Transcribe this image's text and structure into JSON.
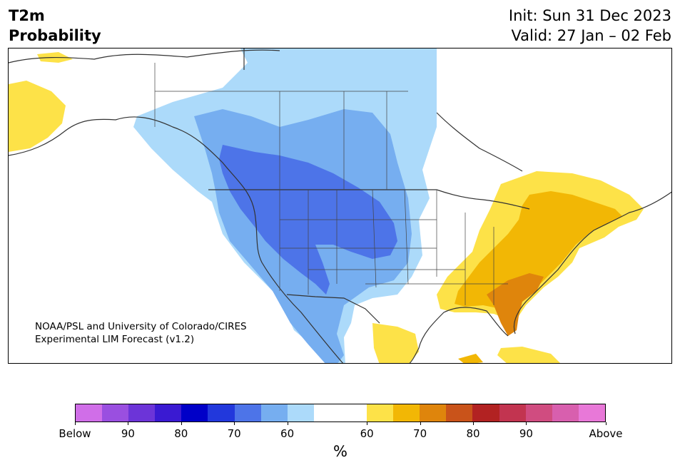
{
  "header": {
    "title_line1": "T2m",
    "title_line2": "Probability",
    "init_text": "Init: Sun 31 Dec 2023",
    "valid_text": "Valid: 27 Jan – 02 Feb"
  },
  "credit": {
    "line1": "NOAA/PSL and University of Colorado/CIRES",
    "line2": "Experimental LIM Forecast (v1.2)"
  },
  "colorbar": {
    "colors": [
      "#d06ee8",
      "#9a4fe0",
      "#6c34d8",
      "#3a1ad2",
      "#0000c8",
      "#2238dc",
      "#4d74e8",
      "#76aef0",
      "#acdafa",
      "#ffffff",
      "#ffffff",
      "#fde248",
      "#f2b705",
      "#df850c",
      "#c9531a",
      "#b22222",
      "#c23450",
      "#d04c80",
      "#d85fae",
      "#e878d8"
    ],
    "tick_labels": [
      "Below",
      "90",
      "80",
      "70",
      "60",
      "60",
      "70",
      "80",
      "90",
      "Above"
    ],
    "unit": "%"
  },
  "legend_colors": {
    "below_60": "#acdafa",
    "below_70": "#76aef0",
    "below_80": "#4d74e8",
    "above_60": "#fde248",
    "above_70": "#f2b705",
    "above_80": "#df850c"
  }
}
